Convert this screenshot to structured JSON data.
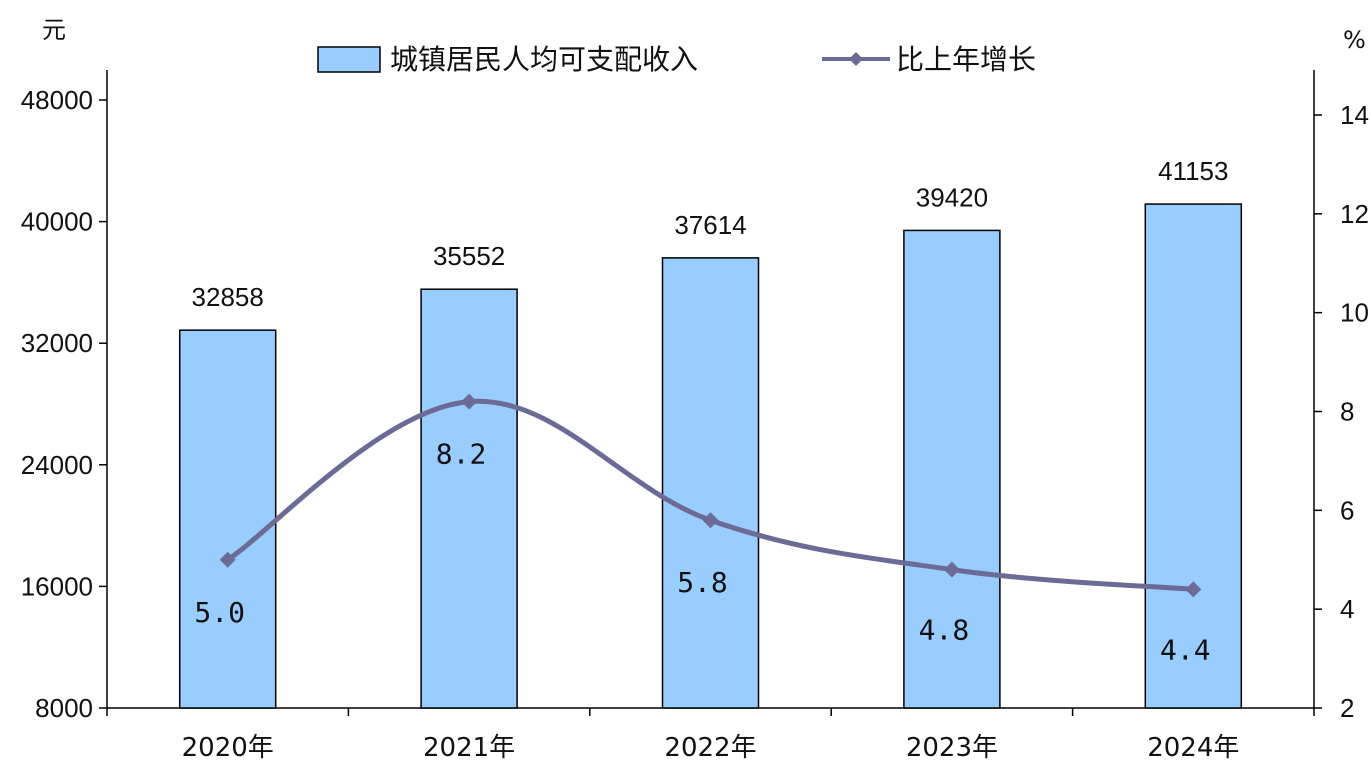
{
  "chart_data": {
    "type": "bar",
    "categories": [
      "2020年",
      "2021年",
      "2022年",
      "2023年",
      "2024年"
    ],
    "series": [
      {
        "name": "城镇居民人均可支配收入",
        "type": "bar",
        "axis": "left",
        "values": [
          32858,
          35552,
          37614,
          39420,
          41153
        ],
        "labels": [
          "32858",
          "35552",
          "37614",
          "39420",
          "41153"
        ],
        "color": "#99ccff"
      },
      {
        "name": "比上年增长",
        "type": "line",
        "axis": "right",
        "values": [
          5.0,
          8.2,
          5.8,
          4.8,
          4.4
        ],
        "labels": [
          "5.0",
          "8.2",
          "5.8",
          "4.8",
          "4.4"
        ],
        "color": "#6b6b96"
      }
    ],
    "left_axis": {
      "unit": "元",
      "ylim": [
        8000,
        48000
      ],
      "ticks": [
        8000,
        16000,
        24000,
        32000,
        40000,
        48000
      ],
      "tick_labels": [
        "8000",
        "16000",
        "24000",
        "32000",
        "40000",
        "48000"
      ]
    },
    "right_axis": {
      "unit": "%",
      "ylim": [
        2,
        14
      ],
      "ticks": [
        2,
        4,
        6,
        8,
        10,
        12,
        14
      ],
      "tick_labels": [
        "2",
        "4",
        "6",
        "8",
        "10",
        "12",
        "14"
      ]
    },
    "legend_position": "top",
    "grid": false
  }
}
